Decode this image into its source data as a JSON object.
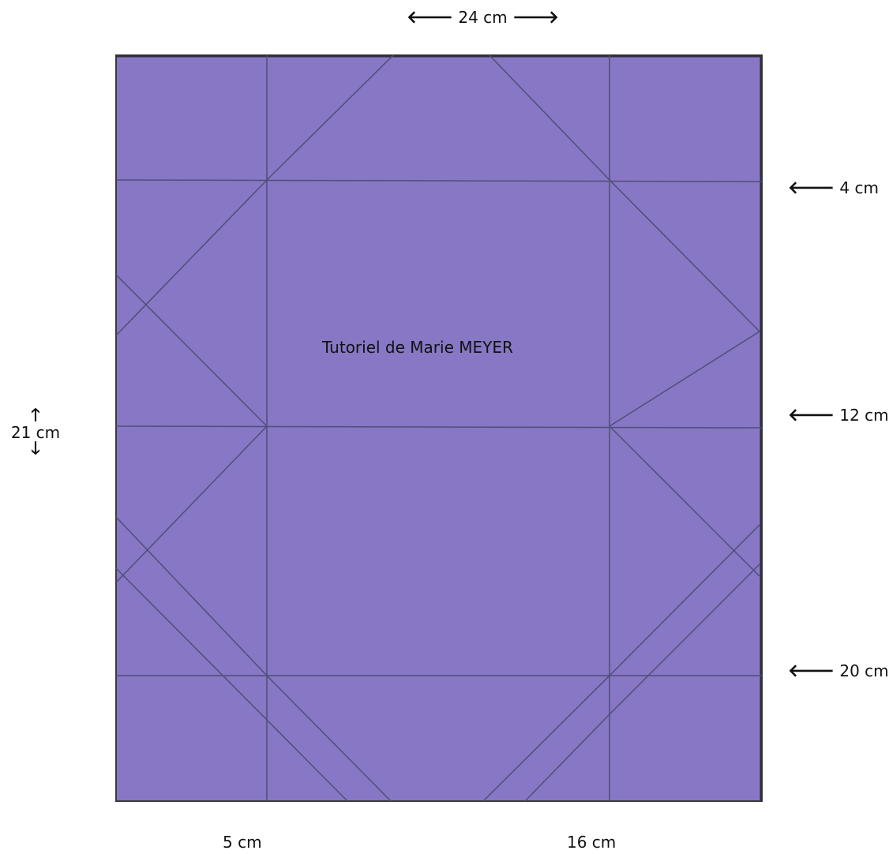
{
  "title": "Tutoriel de Marie MEYER",
  "colors": {
    "paper": "#8777c4",
    "fold_line": "#4f4f78",
    "text": "#111111"
  },
  "arrows": {
    "left": "🡐",
    "right": "🡒",
    "up": "🡑",
    "down": "🡓"
  },
  "dimensions": {
    "width_label": "24 cm",
    "height_label": "21 cm",
    "right_marks": [
      "4 cm",
      "12 cm",
      "20 cm"
    ],
    "bottom_marks": [
      "5 cm",
      "16 cm"
    ]
  }
}
